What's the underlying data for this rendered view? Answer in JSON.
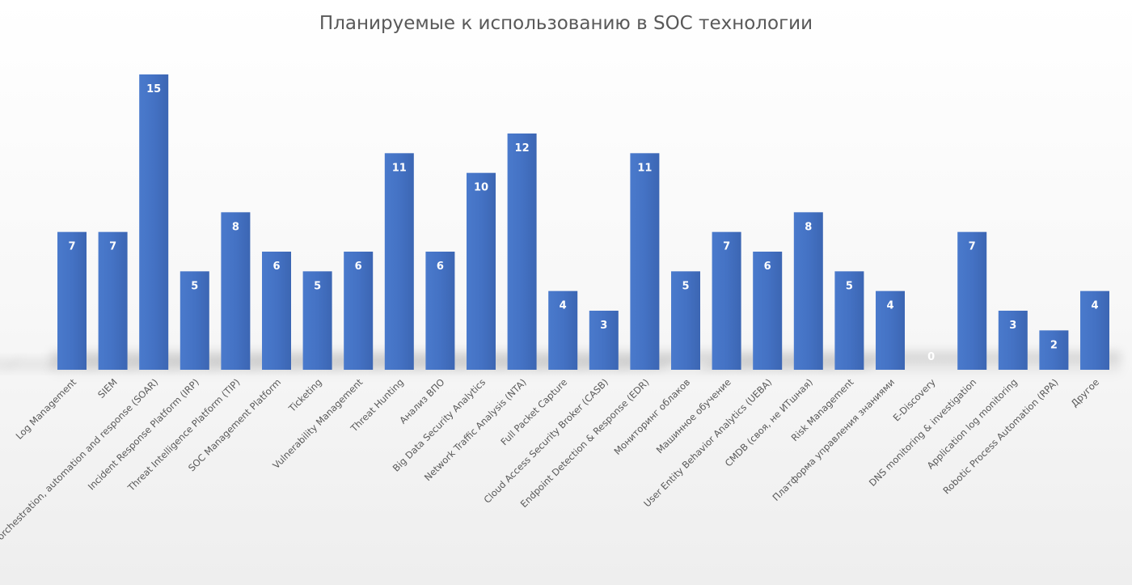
{
  "chart_data": {
    "type": "bar",
    "title": "Планируемые к использованию в SOC технологии",
    "xlabel": "",
    "ylabel": "",
    "ylim": [
      0,
      15
    ],
    "grid": false,
    "legend": "none",
    "bar_color": "#4472C4",
    "label_color": "#FFFFFF",
    "categories": [
      "Log Management",
      "SIEM",
      "Security orchestration, automation and response (SOAR)",
      "Incident Response Platform (IRP)",
      "Threat Intelligence Platform (TIP)",
      "SOC Management Platform",
      "Ticketing",
      "Vulnerability Management",
      "Threat Hunting",
      "Анализ ВПО",
      "Big Data Security Analytics",
      "Network Traffic Analysis (NTA)",
      "Full Packet Capture",
      "Cloud Access Security Broker (CASB)",
      "Endpoint Detection & Response (EDR)",
      "Мониторинг облаков",
      "Машинное обучение",
      "User Entity Behavior Analytics (UEBA)",
      "CMDB (своя, не ИТшная)",
      "Risk Management",
      "Платформа управления знаниями",
      "E-Discovery",
      "DNS monitoring & investigation",
      "Application log monitoring",
      "Robotic Process Automation (RPA)",
      "Другое"
    ],
    "values": [
      7,
      7,
      15,
      5,
      8,
      6,
      5,
      6,
      11,
      6,
      10,
      12,
      4,
      3,
      11,
      5,
      7,
      6,
      8,
      5,
      4,
      0,
      7,
      3,
      2,
      4
    ]
  }
}
